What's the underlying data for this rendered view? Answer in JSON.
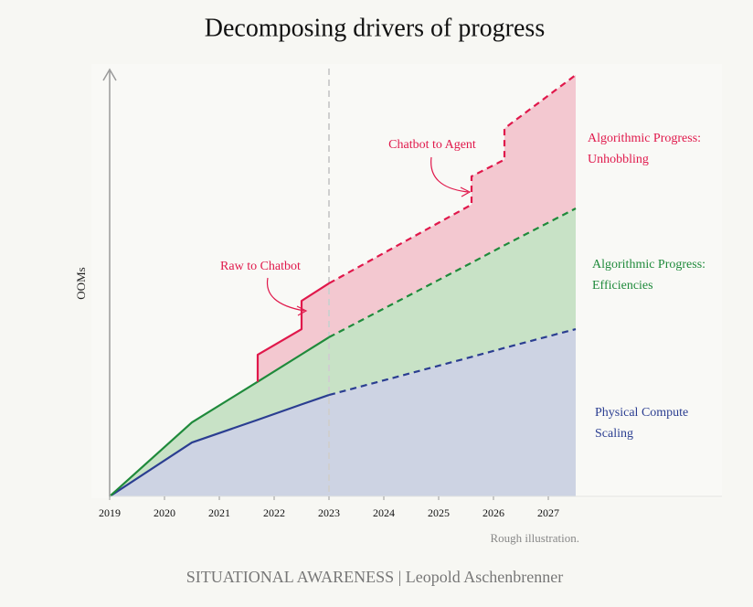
{
  "chart_data": {
    "type": "stacked_area",
    "title": "Decomposing drivers of progress",
    "y_label": "OOMs",
    "note": "Rough illustration.",
    "source": "SITUATIONAL AWARENESS | Leopold Aschenbrenner",
    "annotations": [
      "Raw to Chatbot",
      "Chatbot to Agent"
    ],
    "x": [
      2019,
      2020.5,
      2021.7,
      2021.7,
      2022.5,
      2022.5,
      2023,
      2025.6,
      2025.6,
      2026.2,
      2026.2,
      2027.5
    ],
    "xlim": [
      2019,
      2027.5
    ],
    "xticks": [
      2019,
      2020,
      2021,
      2022,
      2023,
      2024,
      2025,
      2026,
      2027
    ],
    "ylim": [
      0,
      10
    ],
    "projection_start": 2023,
    "series": [
      {
        "name": "Physical Compute Scaling",
        "color": "#2b3e91",
        "fill": "#cdd3e3",
        "values": [
          0,
          1.26,
          1.79,
          1.79,
          2.15,
          2.15,
          2.37,
          3.26,
          3.26,
          3.47,
          3.47,
          3.91
        ]
      },
      {
        "name": "Algorithmic Progress: Efficiencies",
        "color": "#1f8a3b",
        "fill": "#c8e2c6",
        "values": [
          0,
          0.47,
          0.89,
          0.89,
          1.17,
          1.17,
          1.35,
          2.2,
          2.2,
          2.4,
          2.4,
          2.82
        ]
      },
      {
        "name": "Algorithmic Progress: Unhobbling",
        "color": "#e0184b",
        "fill": "#f3c8d0",
        "values": [
          null,
          null,
          0,
          0.63,
          0.59,
          1.25,
          1.26,
          1.36,
          2.02,
          2.0,
          2.73,
          3.12
        ]
      }
    ]
  }
}
